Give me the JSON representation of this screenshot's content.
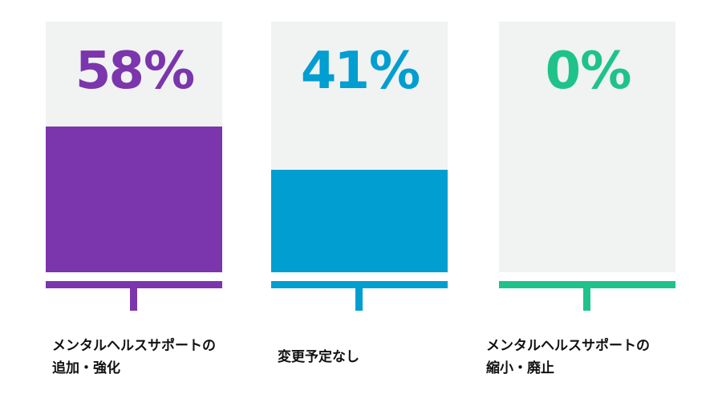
{
  "chart_data": {
    "type": "bar",
    "categories": [
      [
        "メンタルヘルスサポートの",
        "追加・強化"
      ],
      [
        "変更予定なし"
      ],
      [
        "メンタルヘルスサポートの",
        "縮小・廃止"
      ]
    ],
    "values": [
      58,
      41,
      0
    ],
    "value_labels": [
      "58",
      "41",
      "0"
    ],
    "unit": "%",
    "colors": [
      "#7b35ad",
      "#009ed1",
      "#1ec38a"
    ],
    "panel_color": "#f1f2f2",
    "ylim": [
      0,
      100
    ]
  }
}
